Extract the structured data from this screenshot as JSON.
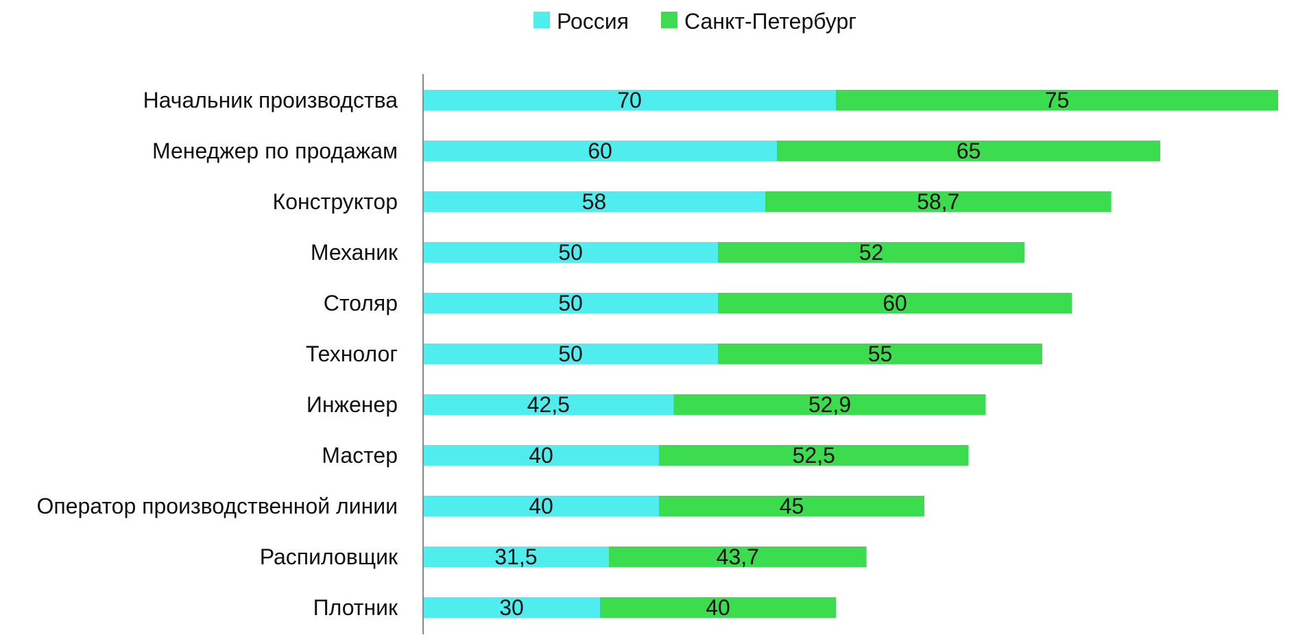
{
  "chart_data": {
    "type": "bar",
    "orientation": "horizontal",
    "stacked": true,
    "title": "",
    "xlabel": "",
    "ylabel": "",
    "legend_position": "top-center",
    "grid": false,
    "colors": {
      "Россия": "#4FEDEE",
      "Санкт-Петербург": "#3BDD4F",
      "axis": "#888888"
    },
    "categories": [
      "Начальник производства",
      "Менеджер по продажам",
      "Конструктор",
      "Механик",
      "Столяр",
      "Технолог",
      "Инженер",
      "Мастер",
      "Оператор производственной линии",
      "Распиловщик",
      "Плотник"
    ],
    "series": [
      {
        "name": "Россия",
        "values": [
          70,
          60,
          58,
          50,
          50,
          50,
          42.5,
          40,
          40,
          31.5,
          30
        ],
        "labels": [
          "70",
          "60",
          "58",
          "50",
          "50",
          "50",
          "42,5",
          "40",
          "40",
          "31,5",
          "30"
        ]
      },
      {
        "name": "Санкт-Петербург",
        "values": [
          75,
          65,
          58.7,
          52,
          60,
          55,
          52.9,
          52.5,
          45,
          43.7,
          40
        ],
        "labels": [
          "75",
          "65",
          "58,7",
          "52",
          "60",
          "55",
          "52,9",
          "52,5",
          "45",
          "43,7",
          "40"
        ]
      }
    ],
    "xlim": [
      0,
      145
    ]
  }
}
